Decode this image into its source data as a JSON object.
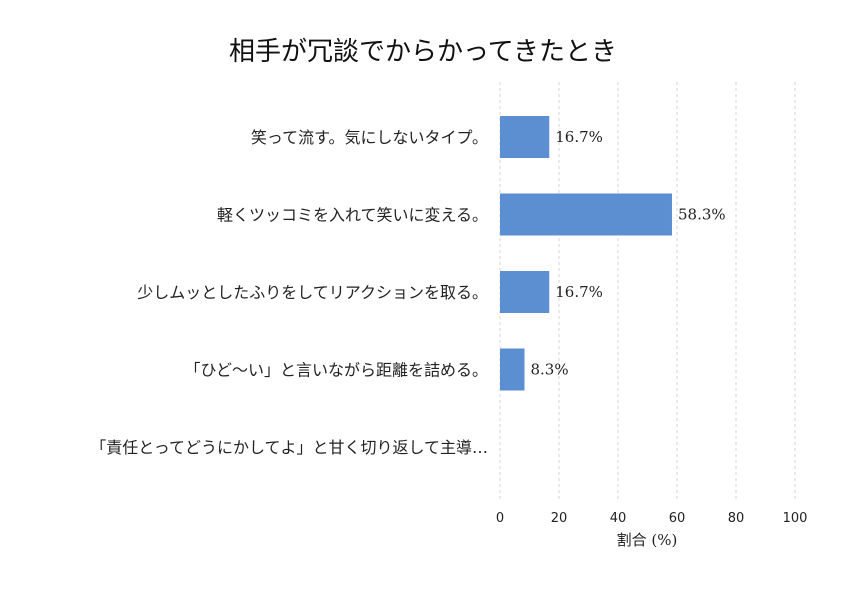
{
  "chart_data": {
    "type": "bar",
    "orientation": "horizontal",
    "title": "相手が冗談でからかってきたとき",
    "xlabel": "割合 (%)",
    "ylabel": "",
    "xlim": [
      0,
      100
    ],
    "x_ticks": [
      "0",
      "20",
      "40",
      "60",
      "80",
      "100"
    ],
    "grid": "vertical dashed",
    "categories": [
      "笑って流す。気にしないタイプ。",
      "軽くツッコミを入れて笑いに変える。",
      "少しムッとしたふりをしてリアクションを取る。",
      "「ひど〜い」と言いながら距離を詰める。",
      "「責任とってどうにかしてよ」と甘く切り返して主導…"
    ],
    "values": [
      16.7,
      58.3,
      16.7,
      8.3,
      0
    ],
    "value_labels": [
      "16.7%",
      "58.3%",
      "16.7%",
      "8.3%",
      ""
    ],
    "bar_color": "#5b8fd1"
  }
}
